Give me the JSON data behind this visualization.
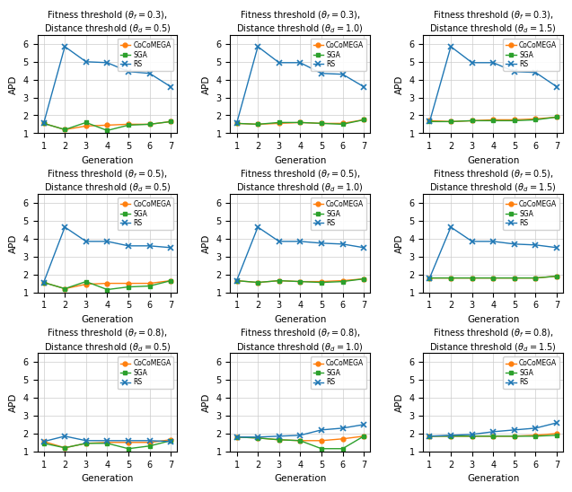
{
  "subplots": [
    {
      "row": 0,
      "col": 0,
      "title1": "Fitness threshold ($\\theta_f = 0.3$),",
      "title2": "Distance threshold ($\\theta_d = 0.5$)",
      "cocomega": [
        1.55,
        1.2,
        1.4,
        1.45,
        1.5,
        1.5,
        1.65
      ],
      "sga": [
        1.55,
        1.2,
        1.6,
        1.15,
        1.45,
        1.5,
        1.65
      ],
      "rs": [
        1.55,
        5.85,
        5.0,
        4.95,
        4.45,
        4.35,
        3.6
      ]
    },
    {
      "row": 0,
      "col": 1,
      "title1": "Fitness threshold ($\\theta_f = 0.3$),",
      "title2": "Distance threshold ($\\theta_d = 1.0$)",
      "cocomega": [
        1.55,
        1.5,
        1.55,
        1.6,
        1.55,
        1.55,
        1.75
      ],
      "sga": [
        1.55,
        1.5,
        1.6,
        1.6,
        1.55,
        1.5,
        1.75
      ],
      "rs": [
        1.55,
        5.85,
        4.95,
        4.95,
        4.35,
        4.3,
        3.6
      ]
    },
    {
      "row": 0,
      "col": 2,
      "title1": "Fitness threshold ($\\theta_f = 0.3$),",
      "title2": "Distance threshold ($\\theta_d = 1.5$)",
      "cocomega": [
        1.7,
        1.65,
        1.7,
        1.75,
        1.75,
        1.8,
        1.9
      ],
      "sga": [
        1.65,
        1.65,
        1.7,
        1.7,
        1.7,
        1.75,
        1.9
      ],
      "rs": [
        1.65,
        5.85,
        4.95,
        4.95,
        4.45,
        4.4,
        3.6
      ]
    },
    {
      "row": 1,
      "col": 0,
      "title1": "Fitness threshold ($\\theta_f = 0.5$),",
      "title2": "Distance threshold ($\\theta_d = 0.5$)",
      "cocomega": [
        1.55,
        1.2,
        1.45,
        1.5,
        1.5,
        1.5,
        1.65
      ],
      "sga": [
        1.55,
        1.2,
        1.6,
        1.15,
        1.3,
        1.35,
        1.65
      ],
      "rs": [
        1.55,
        4.65,
        3.85,
        3.85,
        3.6,
        3.6,
        3.5
      ]
    },
    {
      "row": 1,
      "col": 1,
      "title1": "Fitness threshold ($\\theta_f = 0.5$),",
      "title2": "Distance threshold ($\\theta_d = 1.0$)",
      "cocomega": [
        1.65,
        1.55,
        1.65,
        1.6,
        1.6,
        1.65,
        1.75
      ],
      "sga": [
        1.65,
        1.55,
        1.65,
        1.6,
        1.55,
        1.6,
        1.75
      ],
      "rs": [
        1.65,
        4.65,
        3.85,
        3.85,
        3.75,
        3.7,
        3.5
      ]
    },
    {
      "row": 1,
      "col": 2,
      "title1": "Fitness threshold ($\\theta_f = 0.5$),",
      "title2": "Distance threshold ($\\theta_d = 1.5$)",
      "cocomega": [
        1.8,
        1.8,
        1.8,
        1.8,
        1.8,
        1.8,
        1.9
      ],
      "sga": [
        1.8,
        1.8,
        1.8,
        1.8,
        1.8,
        1.8,
        1.9
      ],
      "rs": [
        1.8,
        4.65,
        3.85,
        3.85,
        3.7,
        3.65,
        3.5
      ]
    },
    {
      "row": 2,
      "col": 0,
      "title1": "Fitness threshold ($\\theta_f = 0.8$),",
      "title2": "Distance threshold ($\\theta_d = 0.5$)",
      "cocomega": [
        1.55,
        1.2,
        1.45,
        1.5,
        1.5,
        1.5,
        1.65
      ],
      "sga": [
        1.45,
        1.2,
        1.45,
        1.45,
        1.15,
        1.3,
        1.6
      ],
      "rs": [
        1.55,
        1.85,
        1.6,
        1.6,
        1.6,
        1.6,
        1.55
      ]
    },
    {
      "row": 2,
      "col": 1,
      "title1": "Fitness threshold ($\\theta_f = 0.8$),",
      "title2": "Distance threshold ($\\theta_d = 1.0$)",
      "cocomega": [
        1.8,
        1.75,
        1.65,
        1.6,
        1.6,
        1.7,
        1.85
      ],
      "sga": [
        1.8,
        1.75,
        1.65,
        1.6,
        1.15,
        1.15,
        1.85
      ],
      "rs": [
        1.8,
        1.8,
        1.85,
        1.9,
        2.2,
        2.3,
        2.5
      ]
    },
    {
      "row": 2,
      "col": 2,
      "title1": "Fitness threshold ($\\theta_f = 0.8$),",
      "title2": "Distance threshold ($\\theta_d = 1.5$)",
      "cocomega": [
        1.85,
        1.85,
        1.85,
        1.85,
        1.85,
        1.9,
        2.0
      ],
      "sga": [
        1.85,
        1.85,
        1.85,
        1.85,
        1.85,
        1.85,
        1.9
      ],
      "rs": [
        1.85,
        1.9,
        1.95,
        2.1,
        2.2,
        2.3,
        2.6
      ]
    }
  ],
  "x": [
    1,
    2,
    3,
    4,
    5,
    6,
    7
  ],
  "color_cocomega": "#FF7F0E",
  "color_sga": "#2CA02C",
  "color_rs": "#1F77B4",
  "marker_cocomega": "o",
  "marker_sga": "s",
  "marker_rs": "x",
  "xlabel": "Generation",
  "ylabel": "APD",
  "legend_labels": [
    "CoCoMEGA",
    "SGA",
    "RS"
  ],
  "ylim": [
    1,
    6.5
  ],
  "yticks": [
    1,
    2,
    3,
    4,
    5,
    6
  ],
  "xticks": [
    1,
    2,
    3,
    4,
    5,
    6,
    7
  ]
}
